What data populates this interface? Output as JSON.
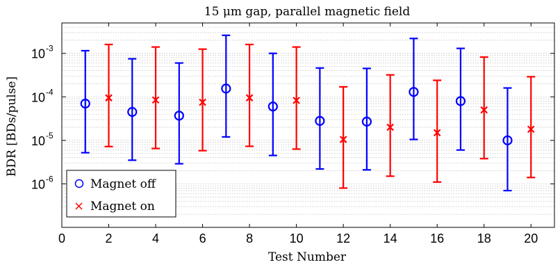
{
  "chart_data": {
    "type": "scatter",
    "title": "15 μm gap, parallel magnetic field",
    "xlabel": "Test Number",
    "ylabel": "BDR [BDs/pulse]",
    "xlim": [
      0,
      21
    ],
    "ylim": [
      1e-07,
      0.005
    ],
    "yscale": "log",
    "grid": "minor-dotted",
    "x_ticks": [
      0,
      2,
      4,
      6,
      8,
      10,
      12,
      14,
      16,
      18,
      20
    ],
    "x_tick_labels": [
      "0",
      "2",
      "4",
      "6",
      "8",
      "10",
      "12",
      "14",
      "16",
      "18",
      "20"
    ],
    "y_ticks": [
      1e-06,
      1e-05,
      0.0001,
      0.001
    ],
    "y_tick_labels": [
      {
        "base": "10",
        "exp": "-6"
      },
      {
        "base": "10",
        "exp": "-5"
      },
      {
        "base": "10",
        "exp": "-4"
      },
      {
        "base": "10",
        "exp": "-3"
      }
    ],
    "legend_position": "bottom-left",
    "series": [
      {
        "name": "Magnet off",
        "marker": "circle",
        "color": "#0000ff",
        "points": [
          {
            "x": 1,
            "y": 7e-05,
            "low": 5.2e-06,
            "high": 0.00115
          },
          {
            "x": 3,
            "y": 4.5e-05,
            "low": 3.5e-06,
            "high": 0.00075
          },
          {
            "x": 5,
            "y": 3.7e-05,
            "low": 2.9e-06,
            "high": 0.0006
          },
          {
            "x": 7,
            "y": 0.000155,
            "low": 1.2e-05,
            "high": 0.0026
          },
          {
            "x": 9,
            "y": 6e-05,
            "low": 4.5e-06,
            "high": 0.001
          },
          {
            "x": 11,
            "y": 2.8e-05,
            "low": 2.2e-06,
            "high": 0.00046
          },
          {
            "x": 13,
            "y": 2.7e-05,
            "low": 2.1e-06,
            "high": 0.00045
          },
          {
            "x": 15,
            "y": 0.00013,
            "low": 1.05e-05,
            "high": 0.0022
          },
          {
            "x": 17,
            "y": 8e-05,
            "low": 6e-06,
            "high": 0.0013
          },
          {
            "x": 19,
            "y": 1e-05,
            "low": 7e-07,
            "high": 0.00016
          }
        ]
      },
      {
        "name": "Magnet on",
        "marker": "x",
        "color": "#ff0000",
        "points": [
          {
            "x": 2,
            "y": 9.5e-05,
            "low": 7.2e-06,
            "high": 0.0016
          },
          {
            "x": 4,
            "y": 8.5e-05,
            "low": 6.5e-06,
            "high": 0.0014
          },
          {
            "x": 6,
            "y": 7.5e-05,
            "low": 5.8e-06,
            "high": 0.00125
          },
          {
            "x": 8,
            "y": 9.5e-05,
            "low": 7.3e-06,
            "high": 0.0016
          },
          {
            "x": 10,
            "y": 8.3e-05,
            "low": 6.3e-06,
            "high": 0.0014
          },
          {
            "x": 12,
            "y": 1.05e-05,
            "low": 8e-07,
            "high": 0.00017
          },
          {
            "x": 14,
            "y": 2e-05,
            "low": 1.5e-06,
            "high": 0.00032
          },
          {
            "x": 16,
            "y": 1.5e-05,
            "low": 1.1e-06,
            "high": 0.00024
          },
          {
            "x": 18,
            "y": 5e-05,
            "low": 3.8e-06,
            "high": 0.00082
          },
          {
            "x": 20,
            "y": 1.8e-05,
            "low": 1.4e-06,
            "high": 0.00029
          }
        ]
      }
    ]
  }
}
